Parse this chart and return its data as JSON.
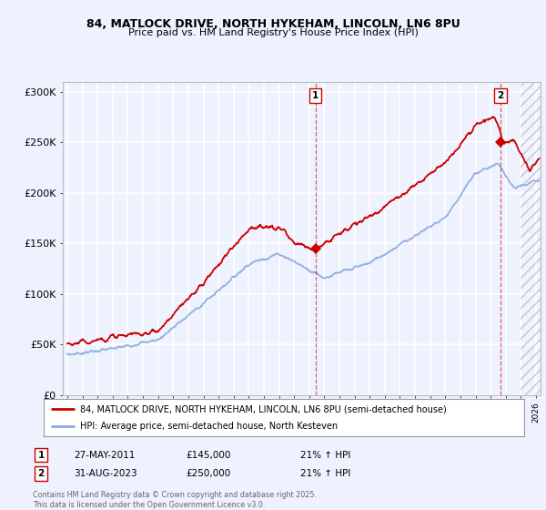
{
  "title1": "84, MATLOCK DRIVE, NORTH HYKEHAM, LINCOLN, LN6 8PU",
  "title2": "Price paid vs. HM Land Registry's House Price Index (HPI)",
  "ylim": [
    0,
    310000
  ],
  "xlim_start": 1994.7,
  "xlim_end": 2026.3,
  "yticks": [
    0,
    50000,
    100000,
    150000,
    200000,
    250000,
    300000
  ],
  "ytick_labels": [
    "£0",
    "£50K",
    "£100K",
    "£150K",
    "£200K",
    "£250K",
    "£300K"
  ],
  "bg_color": "#eef2ff",
  "grid_color": "#ffffff",
  "red_color": "#cc0000",
  "blue_color": "#88aadd",
  "legend_label_red": "84, MATLOCK DRIVE, NORTH HYKEHAM, LINCOLN, LN6 8PU (semi-detached house)",
  "legend_label_blue": "HPI: Average price, semi-detached house, North Kesteven",
  "transaction1_date": 2011.41,
  "transaction1_price": 145000,
  "transaction2_date": 2023.66,
  "transaction2_price": 250000,
  "footer_text": "Contains HM Land Registry data © Crown copyright and database right 2025.\nThis data is licensed under the Open Government Licence v3.0.",
  "annotation1_date": "27-MAY-2011",
  "annotation1_price": "£145,000",
  "annotation1_hpi": "21% ↑ HPI",
  "annotation2_date": "31-AUG-2023",
  "annotation2_price": "£250,000",
  "annotation2_hpi": "21% ↑ HPI",
  "hatch_start": 2025.0
}
